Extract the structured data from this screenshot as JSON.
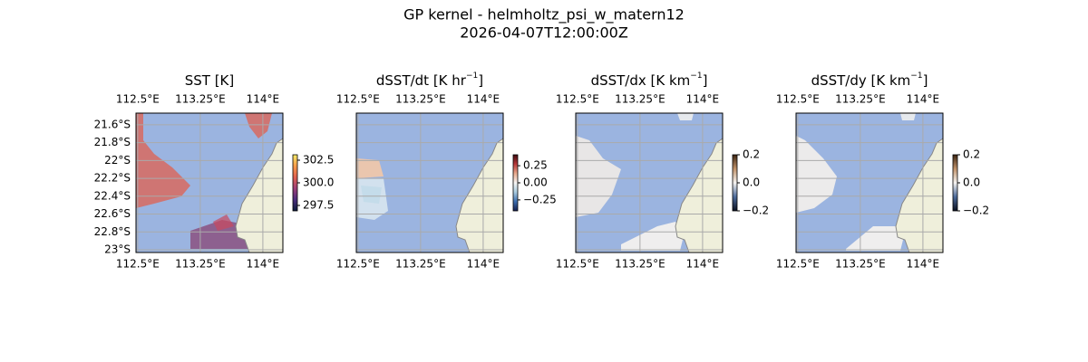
{
  "title": "GP kernel - helmholtz_psi_w_matern12",
  "subtitle": "2026-04-07T12:00:00Z",
  "chart_data": [
    {
      "type": "map",
      "title": {
        "text": "SST [K]"
      },
      "xlim": [
        112.48,
        114.24
      ],
      "ylim": [
        -23.03,
        -21.47
      ],
      "xticks": [
        {
          "value": 112.5,
          "label": "112.5°E"
        },
        {
          "value": 113.25,
          "label": "113.25°E"
        },
        {
          "value": 114,
          "label": "114°E"
        }
      ],
      "yticks": [
        {
          "value": -21.6,
          "label": "21.6°S"
        },
        {
          "value": -21.8,
          "label": "21.8°S"
        },
        {
          "value": -22,
          "label": "22°S"
        },
        {
          "value": -22.2,
          "label": "22.2°S"
        },
        {
          "value": -22.4,
          "label": "22.4°S"
        },
        {
          "value": -22.6,
          "label": "22.6°S"
        },
        {
          "value": -22.8,
          "label": "22.8°S"
        },
        {
          "value": -23,
          "label": "23°S"
        }
      ],
      "show_ylabels": true,
      "colorbar": {
        "lim": [
          296.9,
          303.1
        ],
        "ticks": [
          302.5,
          {
            "value": 300,
            "label": "300.0"
          },
          297.5
        ],
        "colors": [
          "#0b1b3a",
          "#4b2d7e",
          "#9c3f78",
          "#e0604f",
          "#f79c4a",
          "#f5eb6a"
        ]
      }
    },
    {
      "type": "map",
      "title": {
        "text": "dSST/dt [K hr",
        "sup": "−1",
        "tail": "]"
      },
      "xlim": [
        112.48,
        114.24
      ],
      "ylim": [
        -23.03,
        -21.47
      ],
      "xticks": [
        {
          "value": 112.5,
          "label": "112.5°E"
        },
        {
          "value": 113.25,
          "label": "113.25°E"
        },
        {
          "value": 114,
          "label": "114°E"
        }
      ],
      "yticks": [
        -21.6,
        -21.8,
        -22,
        -22.2,
        -22.4,
        -22.6,
        -22.8,
        -23
      ],
      "show_ylabels": false,
      "colorbar": {
        "lim": [
          -0.41,
          0.41
        ],
        "ticks": [
          0.25,
          {
            "value": 0,
            "label": "0.00"
          },
          {
            "value": -0.25,
            "label": "−0.25"
          }
        ],
        "colors": [
          "#141e4f",
          "#3d6fb0",
          "#a9cce0",
          "#f7f5f3",
          "#e8a98c",
          "#b8383a",
          "#3e0b10"
        ]
      }
    },
    {
      "type": "map",
      "title": {
        "text": "dSST/dx [K km",
        "sup": "−1",
        "tail": "]"
      },
      "xlim": [
        112.48,
        114.24
      ],
      "ylim": [
        -23.03,
        -21.47
      ],
      "xticks": [
        {
          "value": 112.5,
          "label": "112.5°E"
        },
        {
          "value": 113.25,
          "label": "113.25°E"
        },
        {
          "value": 114,
          "label": "114°E"
        }
      ],
      "yticks": [
        -21.6,
        -21.8,
        -22,
        -22.2,
        -22.4,
        -22.6,
        -22.8,
        -23
      ],
      "show_ylabels": false,
      "colorbar": {
        "lim": [
          -0.2,
          0.2
        ],
        "ticks": [
          0.2,
          {
            "value": 0,
            "label": "0.0"
          },
          {
            "value": -0.2,
            "label": "−0.2"
          }
        ],
        "colors": [
          "#0a0f1f",
          "#4c6a9a",
          "#f5f3f0",
          "#c0926a",
          "#3b2411"
        ]
      }
    },
    {
      "type": "map",
      "title": {
        "text": "dSST/dy [K km",
        "sup": "−1",
        "tail": "]"
      },
      "xlim": [
        112.48,
        114.24
      ],
      "ylim": [
        -23.03,
        -21.47
      ],
      "xticks": [
        {
          "value": 112.5,
          "label": "112.5°E"
        },
        {
          "value": 113.25,
          "label": "113.25°E"
        },
        {
          "value": 114,
          "label": "114°E"
        }
      ],
      "yticks": [
        -21.6,
        -21.8,
        -22,
        -22.2,
        -22.4,
        -22.6,
        -22.8,
        -23
      ],
      "show_ylabels": false,
      "colorbar": {
        "lim": [
          -0.2,
          0.2
        ],
        "ticks": [
          0.2,
          {
            "value": 0,
            "label": "0.0"
          },
          {
            "value": -0.2,
            "label": "−0.2"
          }
        ],
        "colors": [
          "#0a0f1f",
          "#4c6a9a",
          "#f5f3f0",
          "#c0926a",
          "#3b2411"
        ]
      }
    }
  ]
}
